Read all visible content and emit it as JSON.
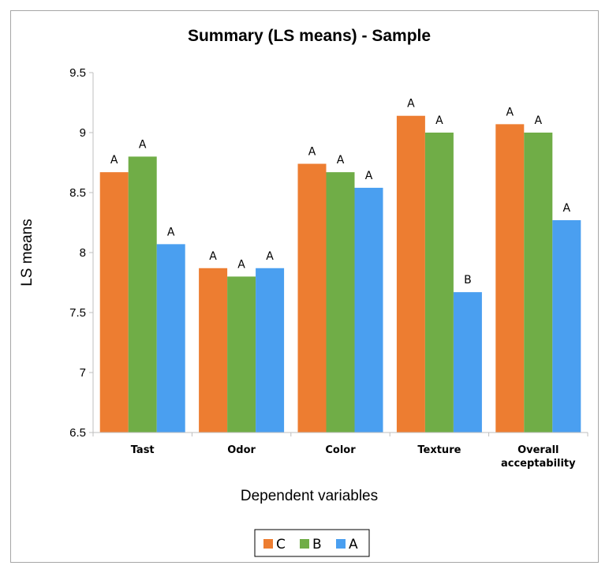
{
  "chart_data": {
    "type": "bar",
    "title": "Summary (LS means) - Sample",
    "xlabel": "Dependent variables",
    "ylabel": "LS means",
    "ylim": [
      6.5,
      9.5
    ],
    "yticks": [
      "6.5",
      "7",
      "7.5",
      "8",
      "8.5",
      "9",
      "9.5"
    ],
    "categories": [
      "Tast",
      "Odor",
      "Color",
      "Texture",
      "Overall acceptability"
    ],
    "series": [
      {
        "name": "C",
        "color": "#ed7d31",
        "values": [
          8.67,
          7.87,
          8.74,
          9.14,
          9.07
        ],
        "labels": [
          "A",
          "A",
          "A",
          "A",
          "A"
        ]
      },
      {
        "name": "B",
        "color": "#70ad47",
        "values": [
          8.8,
          7.8,
          8.67,
          9.0,
          9.0
        ],
        "labels": [
          "A",
          "A",
          "A",
          "A",
          "A"
        ]
      },
      {
        "name": "A",
        "color": "#4a9ff0",
        "values": [
          8.07,
          7.87,
          8.54,
          7.67,
          8.27
        ],
        "labels": [
          "A",
          "A",
          "A",
          "B",
          "A"
        ]
      }
    ],
    "grid": false,
    "legend": "bottom"
  }
}
